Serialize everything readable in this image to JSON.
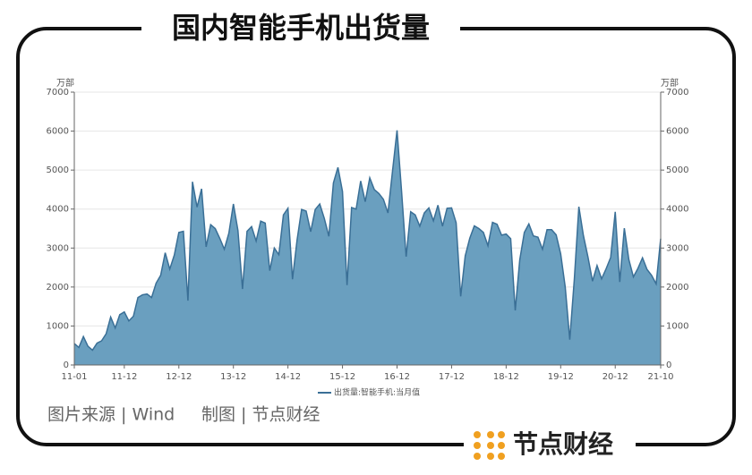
{
  "chart_data": {
    "type": "area",
    "title": "国内智能手机出货量",
    "ylabel": "万部",
    "y2label": "万部",
    "categories": [
      "11-01",
      null,
      null,
      null,
      null,
      null,
      null,
      null,
      null,
      null,
      null,
      "11-12",
      null,
      null,
      null,
      null,
      null,
      null,
      null,
      null,
      null,
      null,
      null,
      "12-12",
      null,
      null,
      null,
      null,
      null,
      null,
      null,
      null,
      null,
      null,
      null,
      "13-12",
      null,
      null,
      null,
      null,
      null,
      null,
      null,
      null,
      null,
      null,
      null,
      "14-12",
      null,
      null,
      null,
      null,
      null,
      null,
      null,
      null,
      null,
      null,
      null,
      "15-12",
      null,
      null,
      null,
      null,
      null,
      null,
      null,
      null,
      null,
      null,
      null,
      "16-12",
      null,
      null,
      null,
      null,
      null,
      null,
      null,
      null,
      null,
      null,
      null,
      "17-12",
      null,
      null,
      null,
      null,
      null,
      null,
      null,
      null,
      null,
      null,
      null,
      "18-12",
      null,
      null,
      null,
      null,
      null,
      null,
      null,
      null,
      null,
      null,
      null,
      "19-12",
      null,
      null,
      null,
      null,
      null,
      null,
      null,
      null,
      null,
      null,
      null,
      "20-12",
      null,
      null,
      null,
      null,
      null,
      null,
      null,
      null,
      null,
      "21-10"
    ],
    "series": [
      {
        "name": "出货量:智能手机:当月值",
        "color": "#3a6f96",
        "fill": "#6a9fbf",
        "values": [
          550,
          450,
          730,
          480,
          380,
          560,
          620,
          800,
          1230,
          950,
          1290,
          1360,
          1130,
          1250,
          1730,
          1800,
          1820,
          1730,
          2100,
          2300,
          2880,
          2460,
          2820,
          3400,
          3430,
          1650,
          4700,
          4050,
          4520,
          3030,
          3600,
          3500,
          3250,
          2970,
          3380,
          4130,
          3450,
          1950,
          3430,
          3550,
          3180,
          3690,
          3640,
          2420,
          3000,
          2830,
          3850,
          4020,
          2200,
          3200,
          3990,
          3950,
          3420,
          3990,
          4130,
          3760,
          3300,
          4670,
          5070,
          4450,
          2050,
          4040,
          4000,
          4720,
          4190,
          4800,
          4500,
          4400,
          4250,
          3900,
          4970,
          6020,
          4450,
          2780,
          3930,
          3850,
          3560,
          3900,
          4030,
          3700,
          4100,
          3560,
          4020,
          4030,
          3650,
          1760,
          2800,
          3250,
          3570,
          3500,
          3400,
          3060,
          3660,
          3610,
          3330,
          3360,
          3240,
          1400,
          2700,
          3400,
          3620,
          3310,
          3280,
          2970,
          3470,
          3470,
          3340,
          2850,
          2000,
          650,
          2200,
          4060,
          3320,
          2770,
          2150,
          2550,
          2210,
          2470,
          2760,
          3930,
          2130,
          3510,
          2700,
          2260,
          2480,
          2750,
          2450,
          2300,
          2080,
          3240
        ]
      }
    ],
    "ylim": [
      0,
      7000
    ],
    "yticks": [
      0,
      1000,
      2000,
      3000,
      4000,
      5000,
      6000,
      7000
    ],
    "y2lim": [
      0,
      7000
    ],
    "y2ticks": [
      0,
      1000,
      2000,
      3000,
      4000,
      5000,
      6000,
      7000
    ],
    "grid": true,
    "legend": "bottom"
  },
  "footer": {
    "source": "图片来源 | Wind",
    "credit": "制图 | 节点财经"
  },
  "logo": {
    "text": "节点财经"
  }
}
